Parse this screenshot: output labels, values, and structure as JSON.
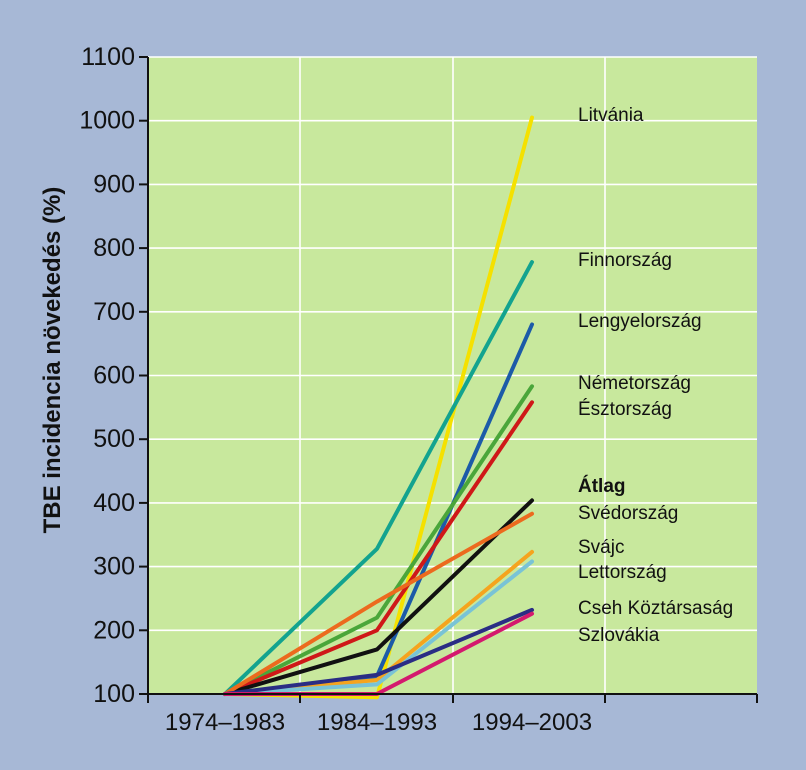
{
  "chart_data": {
    "type": "line",
    "title": "",
    "xlabel": "",
    "ylabel": "TBE incidencia növekedés (%)",
    "categories": [
      "1974–1983",
      "1984–1993",
      "1994–2003"
    ],
    "ylim": [
      100,
      1100
    ],
    "yticks": [
      100,
      200,
      300,
      400,
      500,
      600,
      700,
      800,
      900,
      1000,
      1100
    ],
    "grid": true,
    "legend_placement": "right",
    "colors": {
      "page_background": "#a7b8d6",
      "plot_background": "#c8e89d"
    },
    "series": [
      {
        "name": "Litvánia",
        "values": [
          100,
          95,
          1005
        ],
        "color": "#f5e100"
      },
      {
        "name": "Finnország",
        "values": [
          100,
          328,
          778
        ],
        "color": "#13a38f"
      },
      {
        "name": "Lengyelország",
        "values": [
          100,
          128,
          680
        ],
        "color": "#1c5ba8"
      },
      {
        "name": "Németország",
        "values": [
          100,
          220,
          583
        ],
        "color": "#4aa63a"
      },
      {
        "name": "Észtország",
        "values": [
          100,
          200,
          558
        ],
        "color": "#cf1818"
      },
      {
        "name": "Átlag",
        "values": [
          100,
          170,
          404
        ],
        "color": "#111111",
        "bold": true
      },
      {
        "name": "Svédország",
        "values": [
          100,
          245,
          383
        ],
        "color": "#ec6a1e"
      },
      {
        "name": "Svájc",
        "values": [
          100,
          122,
          323
        ],
        "color": "#f5a41e"
      },
      {
        "name": "Lettország",
        "values": [
          100,
          115,
          308
        ],
        "color": "#79c3d6"
      },
      {
        "name": "Cseh Köztársaság",
        "values": [
          100,
          130,
          232
        ],
        "color": "#2a2d84"
      },
      {
        "name": "Szlovákia",
        "values": [
          100,
          100,
          226
        ],
        "color": "#d4196e"
      }
    ]
  }
}
